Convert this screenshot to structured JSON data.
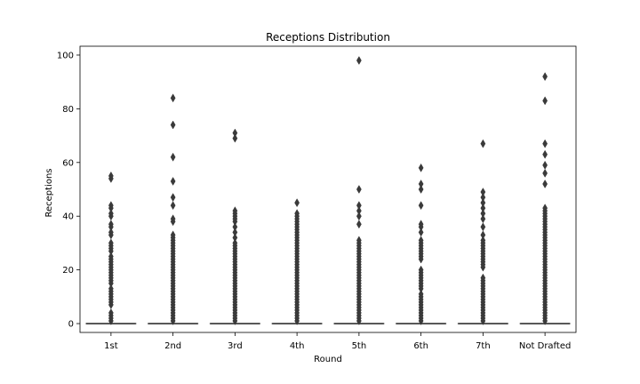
{
  "chart_data": {
    "type": "box",
    "title": "Receptions Distribution",
    "xlabel": "Round",
    "ylabel": "Receptions",
    "categories": [
      "1st",
      "2nd",
      "3rd",
      "4th",
      "5th",
      "6th",
      "7th",
      "Not Drafted"
    ],
    "ylim": [
      -3.3,
      103.3
    ],
    "yticks": [
      0,
      20,
      40,
      60,
      80,
      100
    ],
    "box_color": "#3a3a3a",
    "grid": false,
    "boxes": [
      {
        "category": "1st",
        "q1": 0,
        "median": 0,
        "q3": 0,
        "whisker_low": 0,
        "whisker_high": 0,
        "outliers": [
          55,
          54,
          44,
          43,
          41,
          40,
          37,
          36,
          34,
          33,
          30,
          29,
          28,
          27,
          25,
          24,
          23,
          22,
          21,
          20,
          19,
          18,
          17,
          16,
          15,
          13,
          12,
          11,
          10,
          9,
          8,
          7,
          4,
          3,
          2,
          1
        ]
      },
      {
        "category": "2nd",
        "q1": 0,
        "median": 0,
        "q3": 0,
        "whisker_low": 0,
        "whisker_high": 0,
        "outliers": [
          84,
          74,
          62,
          53,
          47,
          44,
          39,
          38,
          33,
          32,
          31,
          30,
          29,
          28,
          27,
          26,
          25,
          24,
          23,
          22,
          21,
          20,
          19,
          18,
          17,
          16,
          15,
          14,
          13,
          12,
          11,
          10,
          9,
          8,
          7,
          6,
          5,
          4,
          3,
          2,
          1
        ]
      },
      {
        "category": "3rd",
        "q1": 0,
        "median": 0,
        "q3": 0,
        "whisker_low": 0,
        "whisker_high": 0,
        "outliers": [
          71,
          69,
          42,
          41,
          40,
          39,
          38,
          36,
          34,
          32,
          30,
          29,
          28,
          27,
          26,
          25,
          24,
          23,
          22,
          21,
          20,
          19,
          18,
          17,
          16,
          15,
          14,
          13,
          12,
          11,
          10,
          9,
          8,
          7,
          6,
          5,
          4,
          3,
          2,
          1
        ]
      },
      {
        "category": "4th",
        "q1": 0,
        "median": 0,
        "q3": 0,
        "whisker_low": 0,
        "whisker_high": 0,
        "outliers": [
          45,
          41,
          40,
          39,
          38,
          37,
          36,
          35,
          34,
          33,
          32,
          31,
          30,
          29,
          28,
          27,
          26,
          25,
          24,
          23,
          22,
          21,
          20,
          19,
          18,
          17,
          16,
          15,
          14,
          13,
          12,
          11,
          10,
          9,
          8,
          7,
          6,
          5,
          4,
          3,
          2,
          1
        ]
      },
      {
        "category": "5th",
        "q1": 0,
        "median": 0,
        "q3": 0,
        "whisker_low": 0,
        "whisker_high": 0,
        "outliers": [
          98,
          50,
          44,
          42,
          40,
          37,
          31,
          30,
          29,
          28,
          27,
          26,
          25,
          24,
          23,
          22,
          21,
          20,
          19,
          18,
          17,
          16,
          15,
          14,
          13,
          12,
          11,
          10,
          9,
          8,
          7,
          6,
          5,
          4,
          3,
          2,
          1
        ]
      },
      {
        "category": "6th",
        "q1": 0,
        "median": 0,
        "q3": 0,
        "whisker_low": 0,
        "whisker_high": 0,
        "outliers": [
          58,
          52,
          50,
          44,
          37,
          36,
          34,
          31,
          30,
          29,
          28,
          27,
          26,
          25,
          24,
          20,
          19,
          18,
          17,
          16,
          15,
          14,
          13,
          11,
          10,
          9,
          8,
          7,
          6,
          5,
          4,
          3,
          2,
          1
        ]
      },
      {
        "category": "7th",
        "q1": 0,
        "median": 0,
        "q3": 0,
        "whisker_low": 0,
        "whisker_high": 0,
        "outliers": [
          67,
          49,
          47,
          45,
          43,
          41,
          39,
          36,
          33,
          31,
          30,
          29,
          28,
          27,
          26,
          25,
          24,
          23,
          22,
          21,
          17,
          16,
          15,
          14,
          13,
          12,
          11,
          10,
          9,
          8,
          7,
          6,
          5,
          4,
          3,
          2,
          1
        ]
      },
      {
        "category": "Not Drafted",
        "q1": 0,
        "median": 0,
        "q3": 0,
        "whisker_low": 0,
        "whisker_high": 0,
        "outliers": [
          92,
          83,
          67,
          63,
          59,
          56,
          52,
          43,
          42,
          41,
          40,
          39,
          38,
          37,
          36,
          35,
          34,
          33,
          32,
          31,
          30,
          29,
          28,
          27,
          26,
          25,
          24,
          23,
          22,
          21,
          20,
          19,
          18,
          17,
          16,
          15,
          14,
          13,
          12,
          11,
          10,
          9,
          8,
          7,
          6,
          5,
          4,
          3,
          2,
          1
        ]
      }
    ]
  }
}
